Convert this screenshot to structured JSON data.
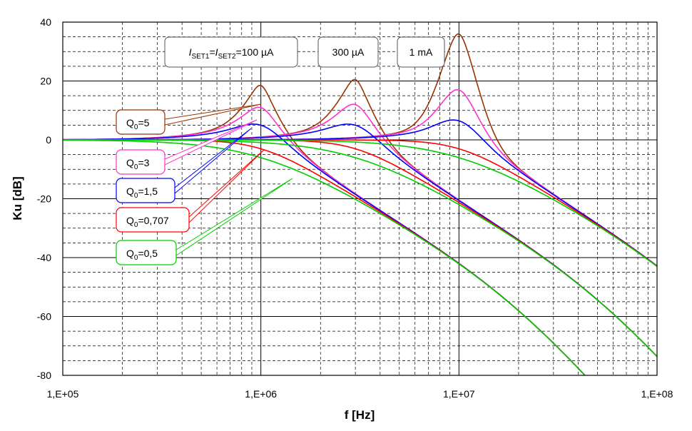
{
  "chart_data": {
    "type": "line",
    "title": "",
    "xlabel": "f [Hz]",
    "ylabel": "Ku [dB]",
    "xscale": "log",
    "xlim": [
      100000,
      100000000
    ],
    "ylim": [
      -80,
      40
    ],
    "x_ticks": [
      "1,E+05",
      "1,E+06",
      "1,E+07",
      "1,E+08"
    ],
    "y_ticks": [
      "40",
      "20",
      "0",
      "-20",
      "-40",
      "-60",
      "-80"
    ],
    "grid": "major solid, minor dashed",
    "legend": "callouts on left side",
    "bias_labels": [
      {
        "prefix1": "I",
        "sub1": "SET1",
        "mid": "=",
        "prefix2": "I",
        "sub2": "SET2",
        "value": "=100 µA",
        "f0": 1000000
      },
      {
        "value": "300 µA",
        "f0": 3000000
      },
      {
        "value": "1 mA",
        "f0": 10000000
      }
    ],
    "series": [
      {
        "name": "Q0=5",
        "label_main": "Q",
        "label_sub": "0",
        "label_rest": "=5",
        "q": 5,
        "color": "#993300"
      },
      {
        "name": "Q0=3",
        "label_main": "Q",
        "label_sub": "0",
        "label_rest": "=3",
        "q": 3,
        "color": "#ff33cc"
      },
      {
        "name": "Q0=1,5",
        "label_main": "Q",
        "label_sub": "0",
        "label_rest": "=1,5",
        "q": 1.5,
        "color": "#0000ff"
      },
      {
        "name": "Q0=0,707",
        "label_main": "Q",
        "label_sub": "0",
        "label_rest": "=0,707",
        "q": 0.707,
        "color": "#ff0000"
      },
      {
        "name": "Q0=0,5",
        "label_main": "Q",
        "label_sub": "0",
        "label_rest": "=0,5",
        "q": 0.5,
        "color": "#00cc00"
      }
    ],
    "peaks_db": {
      "Q0=5": [
        18.5,
        20.5,
        36
      ],
      "Q0=3": [
        11,
        12,
        17
      ],
      "Q0=1,5": [
        5,
        5,
        6.5
      ],
      "Q0=0,707": [
        0,
        0,
        0
      ],
      "Q0=0,5": [
        -6,
        -6,
        -6
      ]
    }
  }
}
